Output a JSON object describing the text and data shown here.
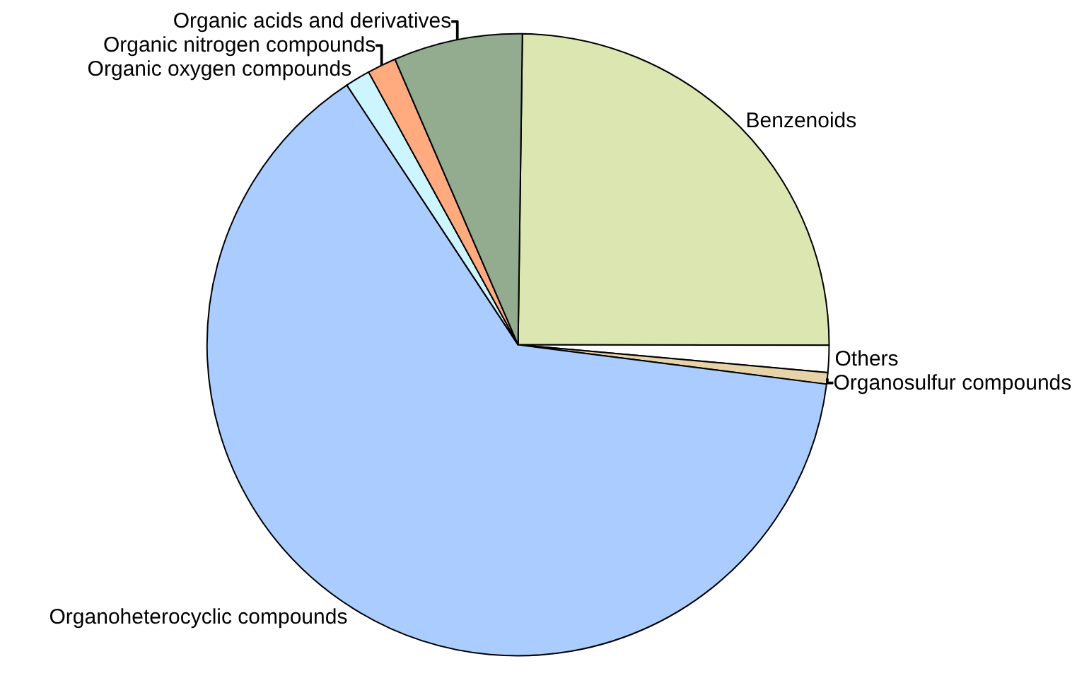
{
  "chart_data": {
    "type": "pie",
    "categories": [
      "Benzenoids",
      "Others",
      "Organosulfur compounds",
      "Organoheterocyclic compounds",
      "Organic oxygen compounds",
      "Organic nitrogen compounds",
      "Organic acids and derivatives"
    ],
    "values": [
      24.8,
      1.4,
      0.6,
      63.7,
      1.3,
      1.5,
      6.7
    ],
    "colors": [
      "#dce6b0",
      "#ffffff",
      "#e6d3a8",
      "#aaccff",
      "#ccf5ff",
      "#ffab7f",
      "#93ab8f"
    ],
    "legend": false
  }
}
